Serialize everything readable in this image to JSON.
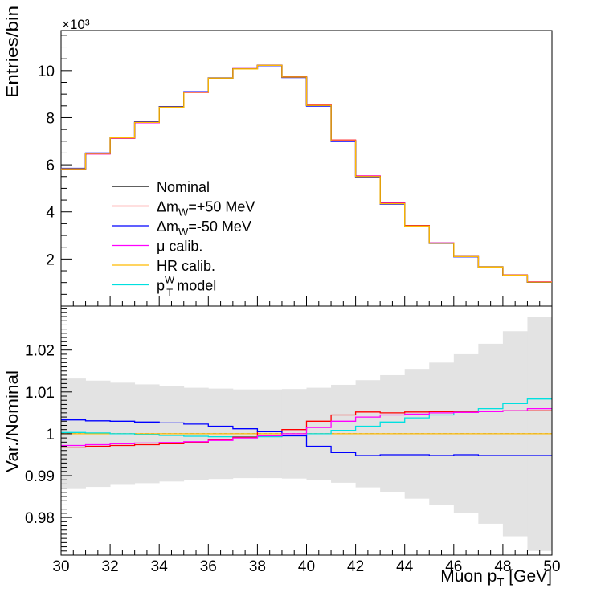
{
  "chart_data": [
    {
      "type": "line",
      "subtype": "histogram-step",
      "ylabel": "Entries/bin",
      "scale_label": "×10³",
      "ylim": [
        0,
        11.7
      ],
      "yticks": [
        2,
        4,
        6,
        8,
        10
      ],
      "bin_edges": [
        30,
        31,
        32,
        33,
        34,
        35,
        36,
        37,
        38,
        39,
        40,
        41,
        42,
        43,
        44,
        45,
        46,
        47,
        48,
        49,
        50
      ],
      "series": [
        {
          "name": "Nominal",
          "color": "#000000",
          "values": [
            5.83,
            6.48,
            7.14,
            7.8,
            8.45,
            9.08,
            9.68,
            10.07,
            10.22,
            9.72,
            8.52,
            7.02,
            5.5,
            4.35,
            3.4,
            2.67,
            2.1,
            1.66,
            1.31,
            1.02
          ]
        },
        {
          "name": "Δm_W=+50 MeV",
          "color": "#ff0000",
          "values": [
            5.81,
            6.46,
            7.12,
            7.78,
            8.43,
            9.07,
            9.68,
            10.08,
            10.23,
            9.73,
            8.55,
            7.05,
            5.53,
            4.38,
            3.42,
            2.68,
            2.11,
            1.67,
            1.32,
            1.03
          ]
        },
        {
          "name": "Δm_W=-50 MeV",
          "color": "#0000ff",
          "values": [
            5.85,
            6.5,
            7.16,
            7.82,
            8.47,
            9.1,
            9.69,
            10.08,
            10.21,
            9.7,
            8.49,
            6.99,
            5.47,
            4.33,
            3.38,
            2.66,
            2.09,
            1.65,
            1.3,
            1.01
          ]
        },
        {
          "name": "μ calib.",
          "color": "#ff00ff",
          "values": [
            5.81,
            6.46,
            7.12,
            7.78,
            8.43,
            9.07,
            9.68,
            10.08,
            10.22,
            9.72,
            8.53,
            7.03,
            5.52,
            4.37,
            3.41,
            2.68,
            2.11,
            1.66,
            1.31,
            1.03
          ]
        },
        {
          "name": "HR calib.",
          "color": "#ffbb00",
          "values": [
            5.83,
            6.48,
            7.14,
            7.8,
            8.45,
            9.08,
            9.68,
            10.07,
            10.22,
            9.72,
            8.52,
            7.02,
            5.5,
            4.35,
            3.4,
            2.67,
            2.1,
            1.66,
            1.31,
            1.02
          ]
        },
        {
          "name": "p_T^W model",
          "color": "#00e0e0",
          "values": [
            5.83,
            6.48,
            7.14,
            7.8,
            8.45,
            9.08,
            9.68,
            10.07,
            10.22,
            9.72,
            8.52,
            7.02,
            5.5,
            4.36,
            3.41,
            2.68,
            2.11,
            1.67,
            1.32,
            1.03
          ]
        }
      ],
      "legend": {
        "placement": "center-left",
        "entries": [
          {
            "key": "Nominal",
            "base": "Nominal",
            "sub": "",
            "sup": "",
            "tail": ""
          },
          {
            "key": "Δm_W=+50 MeV",
            "base": "Δm",
            "sub": "W",
            "sup": "",
            "tail": "=+50 MeV"
          },
          {
            "key": "Δm_W=-50 MeV",
            "base": "Δm",
            "sub": "W",
            "sup": "",
            "tail": "=-50 MeV"
          },
          {
            "key": "μ calib.",
            "base": "μ calib.",
            "sub": "",
            "sup": "",
            "tail": ""
          },
          {
            "key": "HR calib.",
            "base": "HR calib.",
            "sub": "",
            "sup": "",
            "tail": ""
          },
          {
            "key": "p_T^W model",
            "base": "p",
            "sub": "T",
            "sup": "W",
            "tail": " model"
          }
        ]
      }
    },
    {
      "type": "line",
      "subtype": "ratio-step",
      "ylabel": "Var./Nominal",
      "ylim": [
        0.971,
        1.0305
      ],
      "yticks": [
        0.98,
        0.99,
        1,
        1.01,
        1.02
      ],
      "ytick_labels": [
        "0.98",
        "0.99",
        "1",
        "1.01",
        "1.02"
      ],
      "xlabel_base": "Muon p",
      "xlabel_sub": "T",
      "xlabel_tail": " [GeV]",
      "xlim": [
        30,
        50
      ],
      "xticks": [
        30,
        32,
        34,
        36,
        38,
        40,
        42,
        44,
        46,
        48,
        50
      ],
      "xtick_labels": [
        "30",
        "32",
        "34",
        "36",
        "38",
        "40",
        "42",
        "44",
        "46",
        "48",
        "50"
      ],
      "bin_edges": [
        30,
        31,
        32,
        33,
        34,
        35,
        36,
        37,
        38,
        39,
        40,
        41,
        42,
        43,
        44,
        45,
        46,
        47,
        48,
        49,
        50
      ],
      "uncertainty_band": {
        "name": "Uncertainty",
        "color": "#e3e3e3",
        "half_width": [
          0.0132,
          0.0127,
          0.0122,
          0.0118,
          0.0114,
          0.011,
          0.0108,
          0.0106,
          0.0106,
          0.0107,
          0.011,
          0.0117,
          0.0128,
          0.014,
          0.0155,
          0.017,
          0.019,
          0.0215,
          0.0245,
          0.028
        ]
      },
      "reference_line": 1.0,
      "series": [
        {
          "name": "Δm_W=+50 MeV",
          "color": "#ff0000",
          "values": [
            0.9968,
            0.997,
            0.9972,
            0.9974,
            0.9976,
            0.998,
            0.9985,
            0.9992,
            1.0005,
            1.001,
            1.003,
            1.0045,
            1.0052,
            1.005,
            1.0052,
            1.0053,
            1.0052,
            1.0053,
            1.0055,
            1.0055
          ]
        },
        {
          "name": "Δm_W=-50 MeV",
          "color": "#0000ff",
          "values": [
            1.0033,
            1.0031,
            1.003,
            1.0028,
            1.0026,
            1.0023,
            1.0018,
            1.0012,
            1.0005,
            0.9995,
            0.997,
            0.9955,
            0.9948,
            0.995,
            0.995,
            0.9948,
            0.995,
            0.9948,
            0.9948,
            0.9948
          ]
        },
        {
          "name": "μ calib.",
          "color": "#ff00ff",
          "values": [
            0.9972,
            0.9974,
            0.9976,
            0.9978,
            0.9979,
            0.9981,
            0.9984,
            0.999,
            0.9995,
            1.0,
            1.0015,
            1.003,
            1.004,
            1.0045,
            1.0047,
            1.005,
            1.0051,
            1.0053,
            1.0055,
            1.006
          ]
        },
        {
          "name": "HR calib.",
          "color": "#ffbb00",
          "values": [
            1.0,
            1.0,
            1.0,
            1.0,
            1.0,
            1.0,
            1.0,
            1.0,
            1.0,
            1.0,
            1.0,
            1.0,
            1.0,
            1.0,
            1.0,
            1.0,
            1.0,
            1.0,
            1.0,
            1.0
          ]
        },
        {
          "name": "p_T^W model",
          "color": "#00e0e0",
          "values": [
            1.0003,
            1.0002,
            1.0,
            0.9998,
            0.9996,
            0.9994,
            0.9993,
            0.9993,
            0.9993,
            0.9995,
            1.0,
            1.0008,
            1.0018,
            1.0028,
            1.0038,
            1.0045,
            1.0052,
            1.006,
            1.0072,
            1.0083
          ]
        }
      ]
    }
  ]
}
